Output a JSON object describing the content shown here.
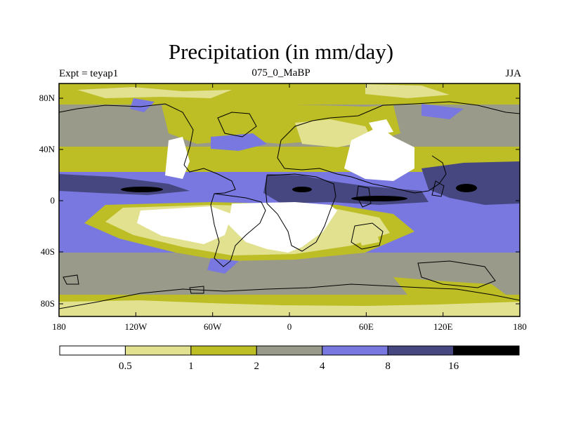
{
  "title": "Precipitation (in mm/day)",
  "subtitle_left": "Expt = teyap1",
  "subtitle_center": "075_0_MaBP",
  "subtitle_right": "JJA",
  "axes": {
    "x_ticks": [
      "180",
      "120W",
      "60W",
      "0",
      "60E",
      "120E",
      "180"
    ],
    "y_ticks": [
      "80N",
      "40N",
      "0",
      "40S",
      "80S"
    ]
  },
  "colorbar": {
    "labels": [
      "0.5",
      "1",
      "2",
      "4",
      "8",
      "16"
    ],
    "colors": [
      "#ffffff",
      "#e1e18f",
      "#bdbd25",
      "#9a9a8a",
      "#7878e0",
      "#464680",
      "#000000"
    ]
  },
  "colors": {
    "white_band": "#ffffff",
    "light_yellow": "#e1e18f",
    "olive": "#bdbd25",
    "grey": "#9a9a8a",
    "blue": "#7878e0",
    "dark_blue": "#464680",
    "black": "#000000"
  }
}
